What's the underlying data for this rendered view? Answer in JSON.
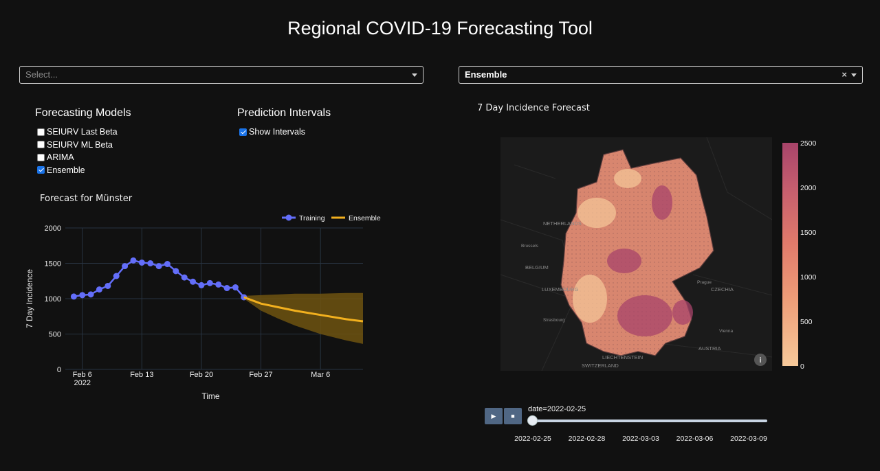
{
  "title": "Regional COVID-19 Forecasting Tool",
  "region_dropdown": {
    "placeholder": "Select..."
  },
  "model_dropdown": {
    "value": "Ensemble",
    "clear_icon": "×"
  },
  "models_panel": {
    "heading": "Forecasting Models",
    "options": [
      {
        "label": "SEIURV Last Beta",
        "checked": false
      },
      {
        "label": "SEIURV ML Beta",
        "checked": false
      },
      {
        "label": "ARIMA",
        "checked": false
      },
      {
        "label": "Ensemble",
        "checked": true
      }
    ]
  },
  "intervals_panel": {
    "heading": "Prediction Intervals",
    "option": {
      "label": "Show Intervals",
      "checked": true
    }
  },
  "forecast_title": "Forecast for Münster",
  "map_title": "7 Day Incidence Forecast",
  "colorbar_ticks": [
    "2500",
    "2000",
    "1500",
    "1000",
    "500",
    "0"
  ],
  "map_labels": [
    "NETHERLANDS",
    "BELGIUM",
    "LUXEMBOURG",
    "CZECHIA",
    "AUSTRIA",
    "LIECHTENSTEIN",
    "SWITZERLAND",
    "Prague",
    "Vienna",
    "Strasbourg",
    "Brussels"
  ],
  "animation": {
    "play_icon": "▶",
    "stop_icon": "■",
    "current_label": "date=2022-02-25",
    "progress": 0,
    "ticks": [
      "2022-02-25",
      "2022-02-28",
      "2022-03-03",
      "2022-03-06",
      "2022-03-09"
    ]
  },
  "colors": {
    "training": "#636efa",
    "ensemble": "#f2b01e",
    "interval": "#6e5410",
    "colorscale": [
      "#f7c99a",
      "#ee9d78",
      "#e07a6b",
      "#c55d6e",
      "#a8446a"
    ]
  },
  "chart_data": {
    "type": "line",
    "title": "Forecast for Münster",
    "xlabel": "Time",
    "ylabel": "7 Day Incidence",
    "ylim": [
      0,
      2000
    ],
    "yticks": [
      "0",
      "500",
      "1000",
      "1500",
      "2000"
    ],
    "xticks": [
      "Feb 6",
      "Feb 13",
      "Feb 20",
      "Feb 27",
      "Mar 6"
    ],
    "xtick_year": "2022",
    "xrange": [
      "2022-02-04",
      "2022-03-11"
    ],
    "legend_position": "top-right",
    "grid": true,
    "series": [
      {
        "name": "Training",
        "mode": "lines+markers",
        "points": [
          [
            "2022-02-05",
            1030
          ],
          [
            "2022-02-06",
            1050
          ],
          [
            "2022-02-07",
            1060
          ],
          [
            "2022-02-08",
            1130
          ],
          [
            "2022-02-09",
            1180
          ],
          [
            "2022-02-10",
            1320
          ],
          [
            "2022-02-11",
            1460
          ],
          [
            "2022-02-12",
            1540
          ],
          [
            "2022-02-13",
            1510
          ],
          [
            "2022-02-14",
            1500
          ],
          [
            "2022-02-15",
            1460
          ],
          [
            "2022-02-16",
            1490
          ],
          [
            "2022-02-17",
            1390
          ],
          [
            "2022-02-18",
            1300
          ],
          [
            "2022-02-19",
            1240
          ],
          [
            "2022-02-20",
            1190
          ],
          [
            "2022-02-21",
            1220
          ],
          [
            "2022-02-22",
            1200
          ],
          [
            "2022-02-23",
            1150
          ],
          [
            "2022-02-24",
            1160
          ],
          [
            "2022-02-25",
            1020
          ]
        ]
      },
      {
        "name": "Ensemble",
        "mode": "lines",
        "points": [
          [
            "2022-02-25",
            1020
          ],
          [
            "2022-02-27",
            930
          ],
          [
            "2022-03-01",
            880
          ],
          [
            "2022-03-03",
            830
          ],
          [
            "2022-03-06",
            770
          ],
          [
            "2022-03-09",
            710
          ],
          [
            "2022-03-11",
            680
          ]
        ],
        "upper": [
          [
            "2022-02-25",
            1040
          ],
          [
            "2022-02-27",
            1050
          ],
          [
            "2022-03-01",
            1060
          ],
          [
            "2022-03-03",
            1070
          ],
          [
            "2022-03-06",
            1070
          ],
          [
            "2022-03-09",
            1080
          ],
          [
            "2022-03-11",
            1080
          ]
        ],
        "lower": [
          [
            "2022-02-25",
            1000
          ],
          [
            "2022-02-27",
            830
          ],
          [
            "2022-03-01",
            720
          ],
          [
            "2022-03-03",
            620
          ],
          [
            "2022-03-06",
            500
          ],
          [
            "2022-03-09",
            410
          ],
          [
            "2022-03-11",
            360
          ]
        ]
      }
    ]
  }
}
